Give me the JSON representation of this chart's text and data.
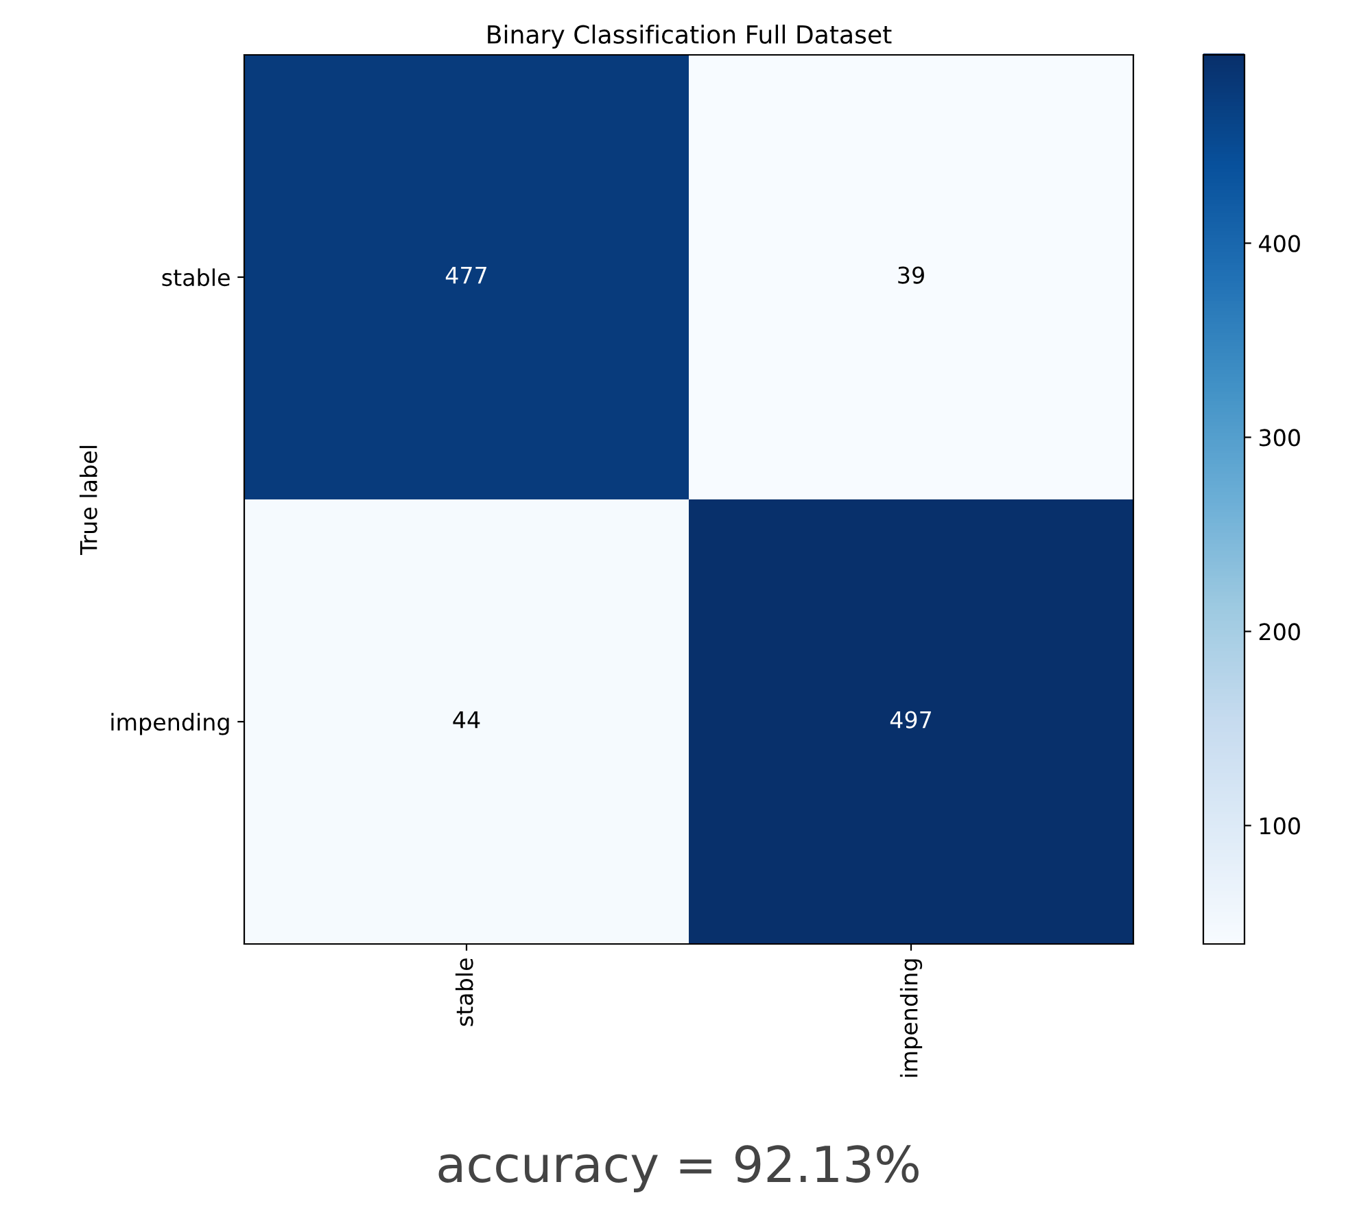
{
  "chart_data": {
    "type": "heatmap",
    "title": "Binary Classification Full Dataset",
    "ylabel": "True label",
    "categories": [
      "stable",
      "impending"
    ],
    "y_categories": [
      "stable",
      "impending"
    ],
    "cells": [
      [
        477,
        39
      ],
      [
        44,
        497
      ]
    ],
    "clim": [
      39,
      497
    ],
    "cticks": [
      100,
      200,
      300,
      400
    ],
    "data_labels": true,
    "annotations": [
      "accuracy = 92.13%"
    ]
  }
}
